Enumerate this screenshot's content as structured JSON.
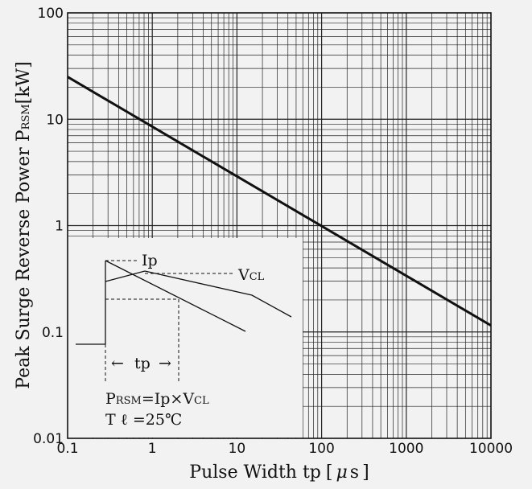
{
  "chart_data": {
    "type": "line",
    "xlabel_parts": [
      "Pulse Width tp",
      "[",
      "μ",
      "s",
      "]"
    ],
    "ylabel_parts": [
      "Peak Surge Reverse Power P",
      "RSM",
      "[kW]"
    ],
    "x_scale": "log",
    "y_scale": "log",
    "xlim": [
      0.1,
      10000
    ],
    "ylim": [
      0.01,
      100
    ],
    "x_ticks": [
      0.1,
      1,
      10,
      100,
      1000,
      10000
    ],
    "x_tick_labels": [
      "0.1",
      "1",
      "10",
      "100",
      "1000",
      "10000"
    ],
    "y_ticks": [
      100,
      10,
      1,
      0.1,
      0.01
    ],
    "y_tick_labels": [
      "100",
      "10",
      "1",
      "0.1",
      "0.01"
    ],
    "grid": true,
    "line_color": "#111111",
    "series": [
      {
        "x": [
          0.1,
          10000
        ],
        "y": [
          25,
          0.115
        ]
      }
    ],
    "inset": {
      "ip_label": "Ip",
      "vcl_label": "V",
      "vcl_sub": "CL",
      "tp_label": "tp",
      "arrow_left": "←",
      "arrow_right": "→",
      "formula_parts": [
        "P",
        "RSM",
        "=Ip×V",
        "CL"
      ],
      "temp_label": "T ℓ =25℃"
    }
  }
}
